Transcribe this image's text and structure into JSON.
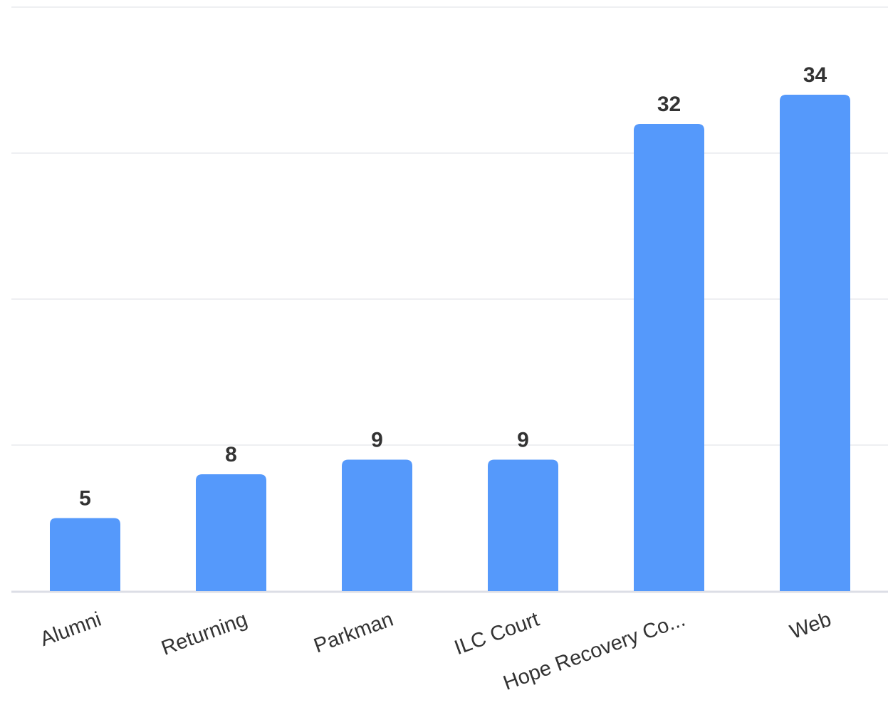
{
  "chart_data": {
    "type": "bar",
    "title": "",
    "xlabel": "",
    "ylabel": "",
    "categories": [
      "Alumni",
      "Returning",
      "Parkman",
      "ILC Court",
      "Hope Recovery Co...",
      "Web"
    ],
    "values": [
      5,
      8,
      9,
      9,
      32,
      34
    ],
    "ylim": [
      0,
      40
    ],
    "grid": true,
    "legend": "none",
    "bar_color": "#5599fb"
  }
}
